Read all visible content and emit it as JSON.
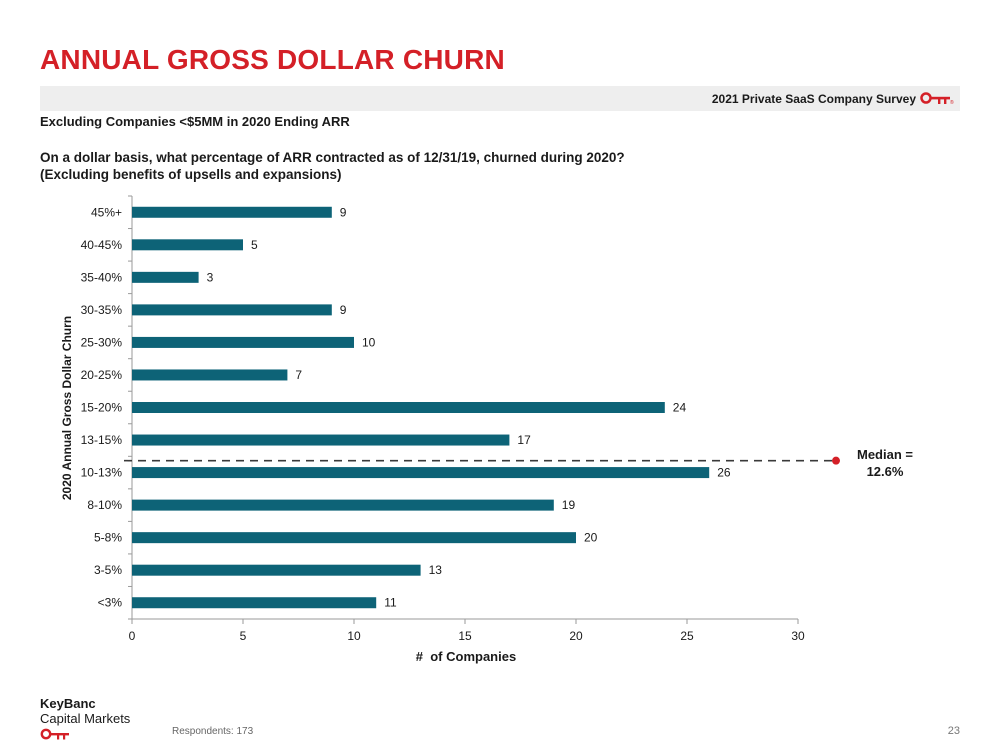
{
  "header": {
    "title": "ANNUAL GROSS DOLLAR CHURN",
    "survey_label": "2021 Private SaaS Company Survey",
    "subtitle": "Excluding Companies <$5MM in 2020 Ending ARR",
    "question_line1": "On a dollar basis, what percentage of ARR contracted as of 12/31/19, churned during 2020?",
    "question_line2": "(Excluding benefits of upsells and expansions)"
  },
  "chart_data": {
    "type": "bar",
    "orientation": "horizontal",
    "categories": [
      "45%+",
      "40-45%",
      "35-40%",
      "30-35%",
      "25-30%",
      "20-25%",
      "15-20%",
      "13-15%",
      "10-13%",
      "8-10%",
      "5-8%",
      "3-5%",
      "<3%"
    ],
    "values": [
      9,
      5,
      3,
      9,
      10,
      7,
      24,
      17,
      26,
      19,
      20,
      13,
      11
    ],
    "xlabel": "#  of Companies",
    "ylabel": "2020 Annual Gross Dollar Churn",
    "xlim": [
      0,
      30
    ],
    "xticks": [
      0,
      5,
      10,
      15,
      20,
      25,
      30
    ],
    "bar_color": "#0d6377",
    "grid": false,
    "annotation": {
      "type": "median-line",
      "label_line1": "Median =",
      "label_line2": "12.6%",
      "value_pct": 12.6,
      "color": "#d42027"
    }
  },
  "footer": {
    "logo_line1": "KeyBanc",
    "logo_line2": "Capital Markets",
    "respondents": "Respondents: 173",
    "page_number": "23"
  },
  "colors": {
    "accent": "#d42027",
    "bar": "#0d6377",
    "band": "#eeeeee"
  },
  "icons": {
    "brand": "key-icon"
  }
}
